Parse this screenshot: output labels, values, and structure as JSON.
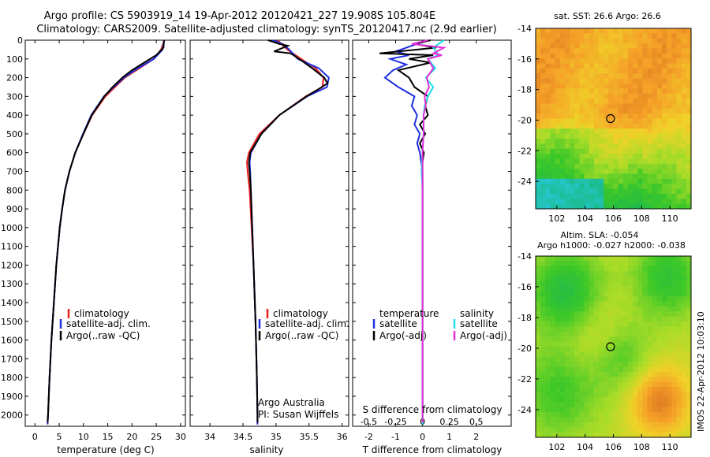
{
  "header": {
    "line1": "Argo profile: CS 5903919_14 19-Apr-2012 20120421_227 19.908S 105.804E",
    "line2": "Climatology: CARS2009. Satellite-adjusted climatology: synTS_20120417.nc (2.9d earlier)"
  },
  "side_stamp": "IMOS 22-Apr-2012 10:03:10",
  "colors": {
    "climatology": "#e8201c",
    "satellite": "#1f2fe0",
    "argo": "#000000",
    "sat_salinity": "#20e0e8",
    "argo_salinity": "#e030d8"
  },
  "chart_data": [
    {
      "type": "line",
      "id": "temperature",
      "xlabel": "temperature (deg C)",
      "ylabel": "",
      "xlim": [
        -2,
        31
      ],
      "ylim": [
        2060,
        0
      ],
      "xticks": [
        0,
        5,
        10,
        15,
        20,
        25,
        30
      ],
      "yticks": [
        0,
        100,
        200,
        300,
        400,
        500,
        600,
        700,
        800,
        900,
        1000,
        1100,
        1200,
        1300,
        1400,
        1500,
        1600,
        1700,
        1800,
        1900,
        2000
      ],
      "legend": [
        "climatology",
        "satellite-adj. clim.",
        "Argo(..raw -QC)"
      ],
      "series": [
        {
          "name": "climatology",
          "color": "#e8201c",
          "depth": [
            0,
            50,
            100,
            150,
            200,
            250,
            300,
            400,
            500,
            600,
            700,
            800,
            900,
            1000,
            1200,
            1400,
            1600,
            1800,
            2000,
            2050
          ],
          "values": [
            26.7,
            26,
            24.5,
            21.5,
            18.5,
            16.5,
            14.5,
            11.8,
            10,
            8.3,
            7.1,
            6.2,
            5.6,
            5.1,
            4.4,
            3.9,
            3.4,
            3,
            2.7,
            2.6
          ]
        },
        {
          "name": "satellite-adj. clim.",
          "color": "#1f2fe0",
          "depth": [
            0,
            50,
            100,
            150,
            200,
            250,
            300,
            400,
            500,
            600,
            700,
            800,
            900,
            1000,
            1200,
            1400,
            1600,
            1800,
            2000,
            2050
          ],
          "values": [
            26.6,
            26.3,
            24.5,
            21.2,
            18.3,
            16.2,
            14.2,
            11.6,
            9.9,
            8.3,
            7.1,
            6.2,
            5.6,
            5.1,
            4.4,
            3.9,
            3.4,
            3,
            2.7,
            2.6
          ]
        },
        {
          "name": "Argo(..raw -QC)",
          "color": "#000000",
          "depth": [
            0,
            40,
            80,
            120,
            160,
            200,
            250,
            300,
            400,
            500,
            600,
            700,
            800,
            900,
            1000,
            1200,
            1400,
            1600,
            1800,
            2000,
            2040
          ],
          "values": [
            26.6,
            26.5,
            25,
            22.5,
            20,
            18,
            16,
            14.3,
            11.7,
            10,
            8.3,
            7.1,
            6.2,
            5.6,
            5.1,
            4.4,
            3.9,
            3.4,
            3,
            2.7,
            2.6
          ]
        }
      ]
    },
    {
      "type": "line",
      "id": "salinity",
      "xlabel": "salinity",
      "ylabel": "",
      "xlim": [
        33.7,
        36.1
      ],
      "ylim": [
        2060,
        0
      ],
      "xticks": [
        34,
        34.5,
        35,
        35.5,
        36
      ],
      "legend": [
        "climatology",
        "satellite-adj. clim.",
        "Argo(..raw -QC)"
      ],
      "annotation": [
        "Argo Australia",
        "PI: Susan Wijffels"
      ],
      "series": [
        {
          "name": "climatology",
          "color": "#e8201c",
          "depth": [
            0,
            50,
            100,
            150,
            200,
            250,
            300,
            400,
            500,
            600,
            650,
            700,
            800,
            1000,
            1200,
            1500,
            1800,
            2000,
            2050
          ],
          "values": [
            35.02,
            35.17,
            35.38,
            35.6,
            35.72,
            35.7,
            35.45,
            35.05,
            34.75,
            34.59,
            34.56,
            34.57,
            34.6,
            34.63,
            34.66,
            34.69,
            34.71,
            34.72,
            34.72
          ]
        },
        {
          "name": "satellite-adj. clim.",
          "color": "#1f2fe0",
          "depth": [
            0,
            20,
            50,
            100,
            150,
            200,
            250,
            300,
            400,
            500,
            600,
            650,
            700,
            800,
            1000,
            1200,
            1500,
            1800,
            2000,
            2050
          ],
          "values": [
            34.95,
            35.1,
            35.2,
            35.33,
            35.65,
            35.8,
            35.77,
            35.47,
            35.05,
            34.78,
            34.62,
            34.6,
            34.61,
            34.62,
            34.64,
            34.66,
            34.69,
            34.71,
            34.72,
            34.72
          ]
        },
        {
          "name": "Argo(..raw -QC)",
          "color": "#000000",
          "depth": [
            0,
            20,
            30,
            60,
            70,
            100,
            150,
            200,
            230,
            260,
            300,
            400,
            500,
            600,
            650,
            700,
            800,
            1000,
            1200,
            1500,
            1800,
            2000,
            2040
          ],
          "values": [
            34.88,
            35.05,
            35.18,
            34.97,
            35.22,
            35.35,
            35.55,
            35.73,
            35.78,
            35.65,
            35.46,
            35.05,
            34.78,
            34.61,
            34.59,
            34.6,
            34.62,
            34.64,
            34.66,
            34.69,
            34.71,
            34.72,
            34.72
          ]
        }
      ]
    },
    {
      "type": "line",
      "id": "differences",
      "xlabel": "T difference from climatology",
      "xlabel_top": "S difference from climatology",
      "xlim": [
        -2.6,
        3.3
      ],
      "xlim_top": [
        -0.65,
        0.825
      ],
      "ylim": [
        2060,
        0
      ],
      "xticks": [
        -2,
        -1,
        0,
        1,
        2
      ],
      "xticks_top": [
        -0.5,
        -0.25,
        0,
        0.25,
        0.5
      ],
      "legend_left": {
        "title": "temperature",
        "items": [
          "satellite",
          "Argo(-adj)"
        ]
      },
      "legend_right": {
        "title": "salinity",
        "items": [
          "satellite",
          "Argo(-adj)"
        ]
      },
      "series": [
        {
          "name": "temperature satellite",
          "color": "#1f2fe0",
          "axis": "T",
          "depth": [
            0,
            30,
            60,
            80,
            100,
            130,
            160,
            200,
            250,
            300,
            350,
            400,
            450,
            500,
            550,
            600,
            650,
            700,
            800,
            1000,
            1500,
            2000,
            2050
          ],
          "values": [
            0.2,
            -0.4,
            -1,
            -0.5,
            -1.2,
            -0.6,
            -1.1,
            -1.4,
            -0.9,
            -0.3,
            -0.4,
            -0.2,
            -0.3,
            -0.1,
            -0.2,
            -0.1,
            -0.05,
            0,
            0,
            0,
            0,
            0,
            0
          ]
        },
        {
          "name": "temperature Argo(-adj)",
          "color": "#000000",
          "axis": "T",
          "depth": [
            0,
            20,
            40,
            70,
            80,
            100,
            120,
            160,
            200,
            250,
            300,
            350,
            400,
            450,
            500,
            550,
            600,
            650,
            700,
            800,
            1000,
            1500,
            2000,
            2040
          ],
          "values": [
            0.3,
            -0.3,
            0.5,
            -1.6,
            0.4,
            -0.5,
            0.3,
            -0.9,
            -0.5,
            -0.3,
            0.2,
            0.1,
            0.2,
            -0.1,
            0.1,
            -0.1,
            0.05,
            0,
            0,
            0,
            0,
            0,
            0,
            0
          ]
        },
        {
          "name": "salinity satellite",
          "color": "#20e0e8",
          "axis": "S",
          "depth": [
            0,
            40,
            80,
            100,
            150,
            200,
            250,
            300,
            350,
            400,
            500,
            600,
            700,
            800,
            1000,
            1500,
            2000,
            2050
          ],
          "values": [
            0.2,
            0.1,
            0.15,
            0.05,
            0.12,
            0.03,
            0.1,
            0.05,
            0.02,
            0.01,
            0.01,
            0,
            -0.01,
            0,
            0,
            0,
            0,
            0
          ]
        },
        {
          "name": "salinity Argo(-adj)",
          "color": "#e030d8",
          "axis": "S",
          "depth": [
            0,
            20,
            40,
            70,
            80,
            100,
            150,
            200,
            250,
            300,
            350,
            400,
            500,
            600,
            700,
            800,
            1000,
            1500,
            2000,
            2040
          ],
          "values": [
            0.05,
            -0.1,
            0.2,
            0.1,
            0.18,
            0.05,
            0.1,
            0.04,
            0.06,
            0.02,
            0.03,
            0.01,
            0.01,
            0,
            0,
            0,
            0,
            0,
            0,
            0
          ]
        }
      ]
    },
    {
      "type": "heatmap",
      "id": "sst-map",
      "title": "sat. SST: 26.6 Argo: 26.6",
      "xticks": [
        102,
        104,
        106,
        108,
        110
      ],
      "yticks": [
        -14,
        -16,
        -18,
        -20,
        -22,
        -24
      ],
      "xlim": [
        100.5,
        111.5
      ],
      "ylim": [
        -25.8,
        -14
      ],
      "marker": {
        "lon": 105.8,
        "lat": -19.9
      }
    },
    {
      "type": "heatmap",
      "id": "sla-map",
      "title1": "Altim. SLA: -0.054",
      "title2": "Argo h1000: -0.027 h2000: -0.038",
      "xticks": [
        102,
        104,
        106,
        108,
        110
      ],
      "yticks": [
        -14,
        -16,
        -18,
        -20,
        -22,
        -24
      ],
      "xlim": [
        100.5,
        111.5
      ],
      "ylim": [
        -25.8,
        -14
      ],
      "marker": {
        "lon": 105.8,
        "lat": -19.9
      }
    }
  ]
}
